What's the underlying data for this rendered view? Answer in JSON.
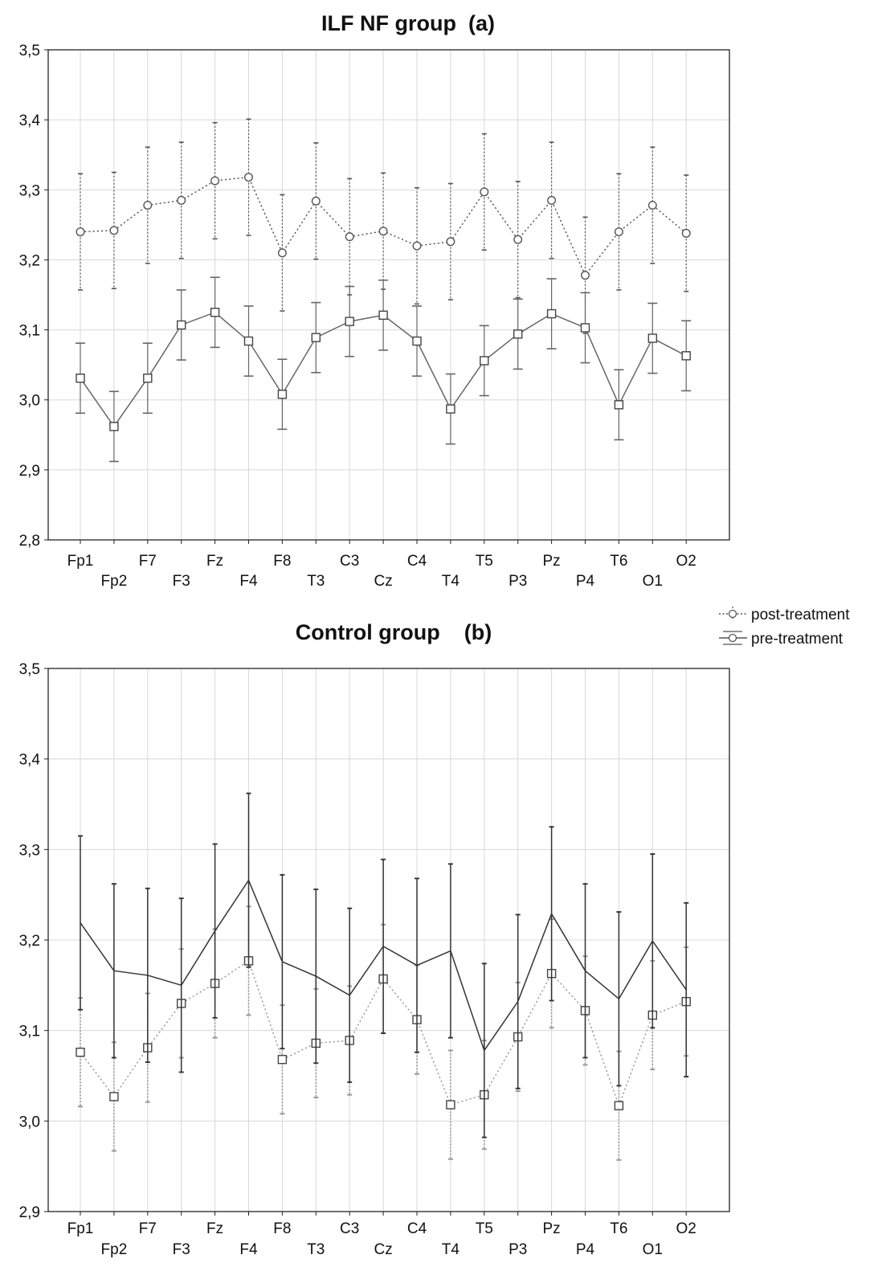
{
  "legend": {
    "items": [
      {
        "label": "post-treatment",
        "style": "dotted",
        "marker": "circle"
      },
      {
        "label": "pre-treatment",
        "style": "solid",
        "marker": "circle"
      }
    ]
  },
  "chart_data": [
    {
      "type": "line",
      "title": "ILF NF group  (a)",
      "xlabel": "",
      "ylabel": "",
      "ylim": [
        2.8,
        3.5
      ],
      "yticks": [
        2.8,
        2.9,
        3.0,
        3.1,
        3.2,
        3.3,
        3.4,
        3.5
      ],
      "ytick_labels": [
        "2,8",
        "2,9",
        "3,0",
        "3,1",
        "3,2",
        "3,3",
        "3,4",
        "3,5"
      ],
      "categories": [
        "Fp1",
        "Fp2",
        "F7",
        "F3",
        "Fz",
        "F4",
        "F8",
        "T3",
        "C3",
        "Cz",
        "C4",
        "T4",
        "T5",
        "P3",
        "Pz",
        "P4",
        "T6",
        "O1",
        "O2"
      ],
      "grid": true,
      "legend_position": "top-right",
      "series": [
        {
          "name": "post-treatment",
          "line_style": "dotted",
          "marker": "circle",
          "values": [
            3.24,
            3.242,
            3.278,
            3.285,
            3.313,
            3.318,
            3.21,
            3.284,
            3.233,
            3.241,
            3.22,
            3.226,
            3.297,
            3.229,
            3.285,
            3.178,
            3.24,
            3.278,
            3.238
          ],
          "error": [
            0.083,
            0.083,
            0.083,
            0.083,
            0.083,
            0.083,
            0.083,
            0.083,
            0.083,
            0.083,
            0.083,
            0.083,
            0.083,
            0.083,
            0.083,
            0.083,
            0.083,
            0.083,
            0.083
          ],
          "color": "#555555"
        },
        {
          "name": "pre-treatment",
          "line_style": "solid",
          "marker": "square",
          "values": [
            3.031,
            2.962,
            3.031,
            3.107,
            3.125,
            3.084,
            3.008,
            3.089,
            3.112,
            3.121,
            3.084,
            2.987,
            3.056,
            3.094,
            3.123,
            3.103,
            2.993,
            3.088,
            3.063
          ],
          "error": [
            0.05,
            0.05,
            0.05,
            0.05,
            0.05,
            0.05,
            0.05,
            0.05,
            0.05,
            0.05,
            0.05,
            0.05,
            0.05,
            0.05,
            0.05,
            0.05,
            0.05,
            0.05,
            0.05
          ],
          "color": "#666666"
        }
      ]
    },
    {
      "type": "line",
      "title": "Control group    (b)",
      "xlabel": "",
      "ylabel": "",
      "ylim": [
        2.9,
        3.5
      ],
      "yticks": [
        2.9,
        3.0,
        3.1,
        3.2,
        3.3,
        3.4,
        3.5
      ],
      "ytick_labels": [
        "2,9",
        "3,0",
        "3,1",
        "3,2",
        "3,3",
        "3,4",
        "3,5"
      ],
      "categories": [
        "Fp1",
        "Fp2",
        "F7",
        "F3",
        "Fz",
        "F4",
        "F8",
        "T3",
        "C3",
        "Cz",
        "C4",
        "T4",
        "T5",
        "P3",
        "Pz",
        "P4",
        "T6",
        "O1",
        "O2"
      ],
      "grid": true,
      "series": [
        {
          "name": "post-treatment",
          "line_style": "dotted",
          "marker": "square",
          "values": [
            3.076,
            3.027,
            3.081,
            3.13,
            3.152,
            3.177,
            3.068,
            3.086,
            3.089,
            3.157,
            3.112,
            3.018,
            3.029,
            3.093,
            3.163,
            3.122,
            3.017,
            3.117,
            3.132
          ],
          "error": [
            0.06,
            0.06,
            0.06,
            0.06,
            0.06,
            0.06,
            0.06,
            0.06,
            0.06,
            0.06,
            0.06,
            0.06,
            0.06,
            0.06,
            0.06,
            0.06,
            0.06,
            0.06,
            0.06
          ],
          "color": "#999999"
        },
        {
          "name": "pre-treatment",
          "line_style": "solid",
          "marker": "none",
          "values": [
            3.219,
            3.166,
            3.161,
            3.15,
            3.21,
            3.266,
            3.176,
            3.16,
            3.139,
            3.193,
            3.172,
            3.188,
            3.078,
            3.132,
            3.229,
            3.166,
            3.135,
            3.199,
            3.145
          ],
          "error": [
            0.096,
            0.096,
            0.096,
            0.096,
            0.096,
            0.096,
            0.096,
            0.096,
            0.096,
            0.096,
            0.096,
            0.096,
            0.096,
            0.096,
            0.096,
            0.096,
            0.096,
            0.096,
            0.096
          ],
          "color": "#333333"
        }
      ]
    }
  ]
}
